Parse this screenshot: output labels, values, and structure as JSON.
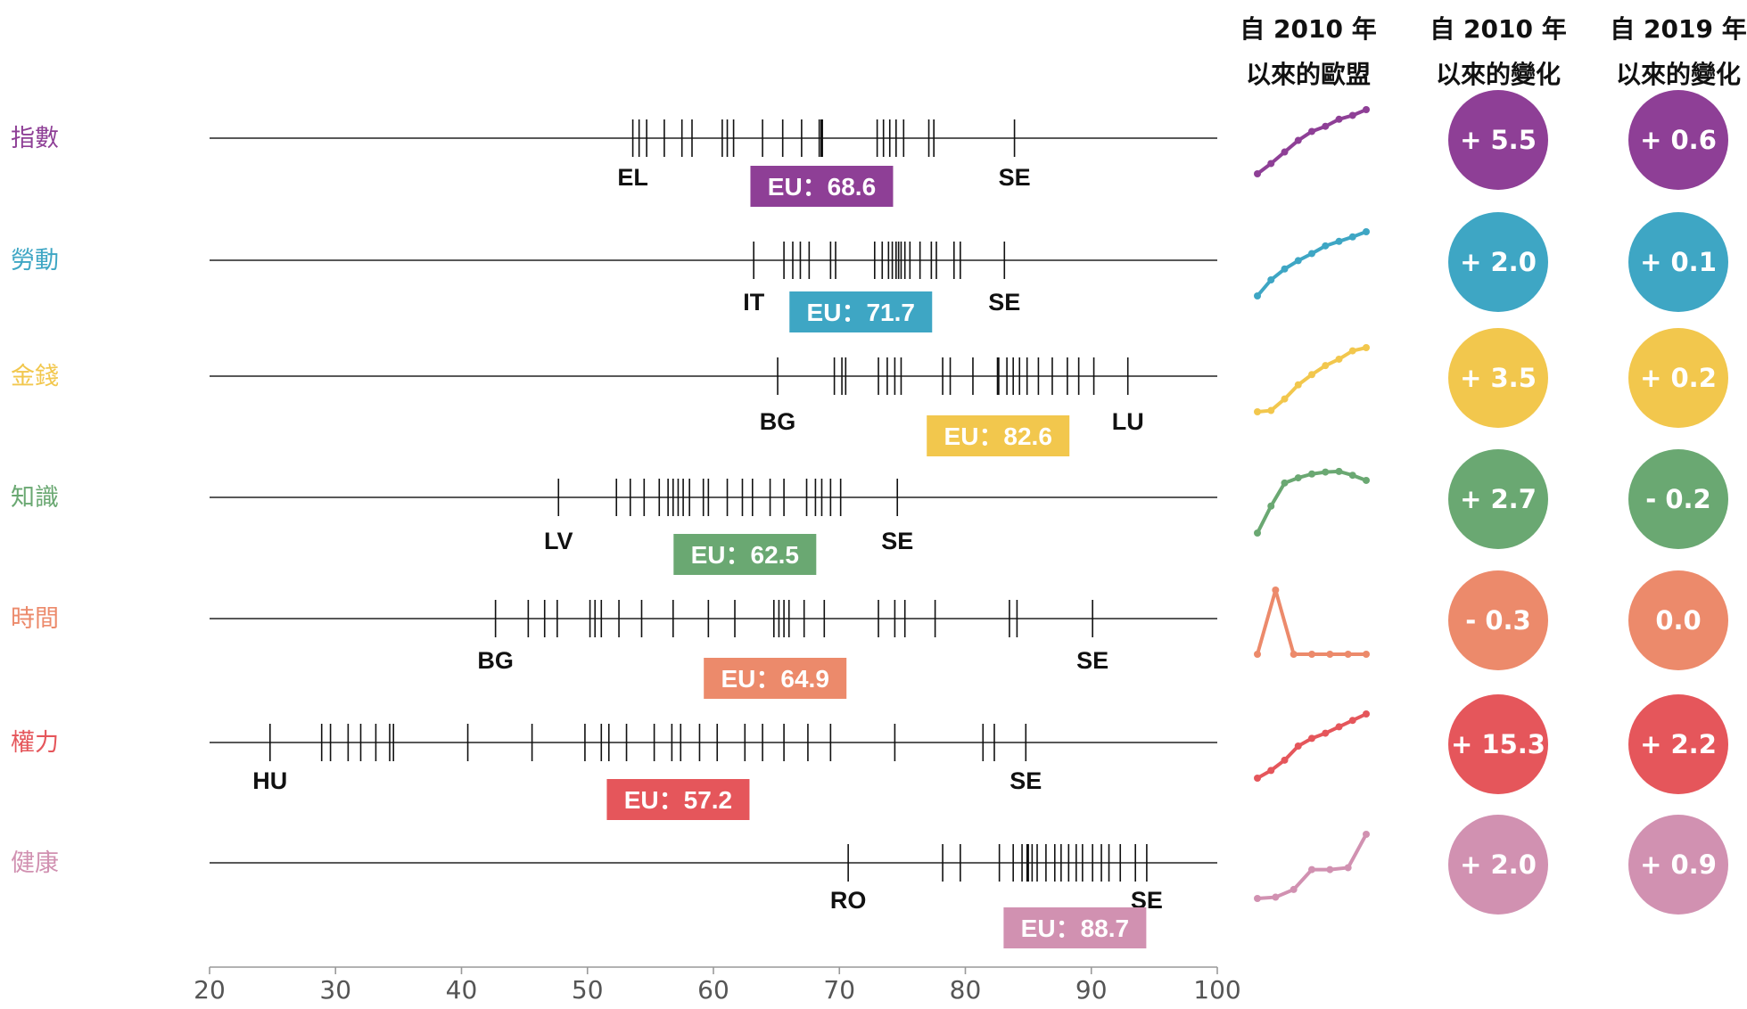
{
  "headers": {
    "col1": [
      "自 2010 年",
      "以來的歐盟"
    ],
    "col2": [
      "自 2010 年",
      "以來的變化"
    ],
    "col3": [
      "自 2019 年",
      "以來的變化"
    ]
  },
  "chart_data": {
    "type": "strip",
    "xlim": [
      20,
      100
    ],
    "xticks": [
      "20",
      "30",
      "40",
      "50",
      "60",
      "70",
      "80",
      "90",
      "100"
    ],
    "rows": [
      {
        "label": "指數",
        "color": "#8e3f96",
        "eu_label": "EU：68.6",
        "eu_value": 68.6,
        "low": {
          "code": "EL",
          "value": 53.6
        },
        "high": {
          "code": "SE",
          "value": 83.9
        },
        "values": [
          53.6,
          54.1,
          54.7,
          56.1,
          57.5,
          58.3,
          60.7,
          61.1,
          61.6,
          63.9,
          65.5,
          67.0,
          68.4,
          68.6,
          73.0,
          73.5,
          74.0,
          74.5,
          75.1,
          77.1,
          77.5,
          83.9
        ],
        "change_2010": "+ 5.5",
        "change_2019": "+ 0.6",
        "trend": [
          0.0,
          0.16,
          0.34,
          0.52,
          0.66,
          0.74,
          0.85,
          0.91,
          1.0
        ]
      },
      {
        "label": "勞動",
        "color": "#3ea6c4",
        "eu_label": "EU：71.7",
        "eu_value": 71.7,
        "low": {
          "code": "IT",
          "value": 63.2
        },
        "high": {
          "code": "SE",
          "value": 83.1
        },
        "values": [
          63.2,
          65.6,
          66.3,
          66.9,
          67.6,
          69.3,
          69.7,
          72.8,
          73.4,
          73.9,
          74.2,
          74.5,
          74.7,
          74.9,
          75.2,
          75.6,
          76.4,
          77.3,
          77.7,
          79.1,
          79.6,
          83.1
        ],
        "change_2010": "+ 2.0",
        "change_2019": "+ 0.1",
        "trend": [
          0.0,
          0.25,
          0.42,
          0.55,
          0.66,
          0.78,
          0.85,
          0.92,
          1.0
        ]
      },
      {
        "label": "金錢",
        "color": "#f2c74d",
        "eu_label": "EU：82.6",
        "eu_value": 82.6,
        "low": {
          "code": "BG",
          "value": 65.1
        },
        "high": {
          "code": "LU",
          "value": 92.9
        },
        "values": [
          65.1,
          69.6,
          70.2,
          70.5,
          73.1,
          73.8,
          74.4,
          74.9,
          78.2,
          78.8,
          80.6,
          82.6,
          83.3,
          83.8,
          84.3,
          84.9,
          85.8,
          86.9,
          88.1,
          89.0,
          90.2,
          92.9
        ],
        "change_2010": "+ 3.5",
        "change_2019": "+ 0.2",
        "trend": [
          0.0,
          0.02,
          0.2,
          0.42,
          0.58,
          0.72,
          0.82,
          0.95,
          1.0
        ]
      },
      {
        "label": "知識",
        "color": "#6aa872",
        "eu_label": "EU：62.5",
        "eu_value": 62.5,
        "low": {
          "code": "LV",
          "value": 47.7
        },
        "high": {
          "code": "SE",
          "value": 74.6
        },
        "values": [
          47.7,
          52.3,
          53.4,
          54.5,
          55.7,
          56.4,
          56.8,
          57.2,
          57.6,
          58.1,
          59.2,
          59.6,
          61.1,
          62.3,
          63.1,
          64.5,
          65.6,
          67.4,
          68.1,
          68.6,
          69.3,
          70.1,
          74.6
        ],
        "change_2010": "+ 2.7",
        "change_2019": "- 0.2",
        "trend": [
          0.0,
          0.42,
          0.78,
          0.86,
          0.92,
          0.95,
          0.96,
          0.9,
          0.82
        ]
      },
      {
        "label": "時間",
        "color": "#ec8a6b",
        "eu_label": "EU：64.9",
        "eu_value": 64.9,
        "low": {
          "code": "BG",
          "value": 42.7
        },
        "high": {
          "code": "SE",
          "value": 90.1
        },
        "values": [
          42.7,
          45.3,
          46.6,
          47.6,
          50.2,
          50.6,
          51.1,
          52.5,
          54.3,
          56.8,
          59.6,
          61.7,
          64.8,
          65.2,
          65.6,
          66.0,
          67.2,
          68.8,
          73.1,
          74.4,
          75.2,
          77.6,
          83.5,
          84.1,
          90.1
        ],
        "change_2010": "- 0.3",
        "change_2019": "0.0",
        "trend": [
          0.0,
          1.0,
          0.0,
          0.0,
          0.0,
          0.0,
          0.0
        ]
      },
      {
        "label": "權力",
        "color": "#e5565b",
        "eu_label": "EU：57.2",
        "eu_value": 57.2,
        "low": {
          "code": "HU",
          "value": 24.8
        },
        "high": {
          "code": "SE",
          "value": 84.8
        },
        "values": [
          24.8,
          28.9,
          29.6,
          31.0,
          32.0,
          33.2,
          34.3,
          34.6,
          40.5,
          45.6,
          49.8,
          51.1,
          51.7,
          53.1,
          55.3,
          56.7,
          57.4,
          58.9,
          60.3,
          62.5,
          63.9,
          65.6,
          67.5,
          69.3,
          74.4,
          81.4,
          82.3,
          84.8
        ],
        "change_2010": "+ 15.3",
        "change_2019": "+ 2.2",
        "trend": [
          0.0,
          0.12,
          0.28,
          0.5,
          0.62,
          0.7,
          0.8,
          0.9,
          1.0
        ]
      },
      {
        "label": "健康",
        "color": "#d191b1",
        "eu_label": "EU：88.7",
        "eu_value": 88.7,
        "low": {
          "code": "RO",
          "value": 70.7
        },
        "high": {
          "code": "SE",
          "value": 94.4
        },
        "values": [
          70.7,
          78.2,
          79.6,
          82.7,
          83.8,
          84.5,
          84.9,
          85.0,
          85.3,
          85.7,
          86.4,
          87.1,
          87.6,
          88.2,
          88.8,
          89.3,
          90.1,
          90.8,
          91.4,
          92.3,
          93.5,
          94.4
        ],
        "change_2010": "+ 2.0",
        "change_2019": "+ 0.9",
        "trend": [
          0.0,
          0.02,
          0.14,
          0.45,
          0.45,
          0.48,
          1.0
        ]
      }
    ]
  }
}
